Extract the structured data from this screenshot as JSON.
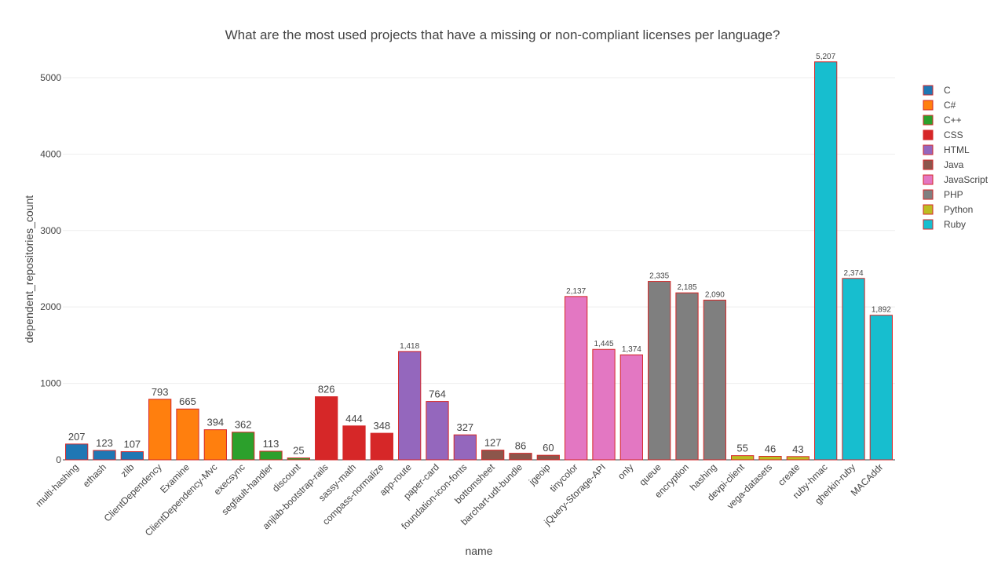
{
  "chart_data": {
    "type": "bar",
    "title": "What are the most used projects that have a missing or non-compliant licenses per language?",
    "xlabel": "name",
    "ylabel": "dependent_repositories_count",
    "ylim": [
      0,
      5400
    ],
    "yticks": [
      0,
      1000,
      2000,
      3000,
      4000,
      5000
    ],
    "grid": true,
    "legend_position": "right",
    "bar_outline_color": "#d62728",
    "categories": [
      "multi-hashing",
      "ethash",
      "zlib",
      "ClientDependency",
      "Examine",
      "ClientDependency-Mvc",
      "execsync",
      "segfault-handler",
      "discount",
      "anjlab-bootstrap-rails",
      "sassy-math",
      "compass-normalize",
      "app-route",
      "paper-card",
      "foundation-icon-fonts",
      "bottomsheet",
      "barchart-udt-bundle",
      "jgeoip",
      "tinycolor",
      "jQuery-Storage-API",
      "only",
      "queue",
      "encryption",
      "hashing",
      "devpi-client",
      "vega-datasets",
      "create",
      "ruby-hmac",
      "gherkin-ruby",
      "MACAddr"
    ],
    "series": [
      {
        "name": "C",
        "color": "#1f77b4",
        "x": [
          "multi-hashing",
          "ethash",
          "zlib"
        ],
        "values": [
          207,
          123,
          107
        ],
        "labels": [
          "207",
          "123",
          "107"
        ]
      },
      {
        "name": "C#",
        "color": "#ff7f0e",
        "x": [
          "ClientDependency",
          "Examine",
          "ClientDependency-Mvc"
        ],
        "values": [
          793,
          665,
          394
        ],
        "labels": [
          "793",
          "665",
          "394"
        ]
      },
      {
        "name": "C++",
        "color": "#2ca02c",
        "x": [
          "execsync",
          "segfault-handler",
          "discount"
        ],
        "values": [
          362,
          113,
          25
        ],
        "labels": [
          "362",
          "113",
          "25"
        ]
      },
      {
        "name": "CSS",
        "color": "#d62728",
        "x": [
          "anjlab-bootstrap-rails",
          "sassy-math",
          "compass-normalize"
        ],
        "values": [
          826,
          444,
          348
        ],
        "labels": [
          "826",
          "444",
          "348"
        ]
      },
      {
        "name": "HTML",
        "color": "#9467bd",
        "x": [
          "app-route",
          "paper-card",
          "foundation-icon-fonts"
        ],
        "values": [
          1418,
          764,
          327
        ],
        "labels": [
          "1,418",
          "764",
          "327"
        ]
      },
      {
        "name": "Java",
        "color": "#8c564b",
        "x": [
          "bottomsheet",
          "barchart-udt-bundle",
          "jgeoip"
        ],
        "values": [
          127,
          86,
          60
        ],
        "labels": [
          "127",
          "86",
          "60"
        ]
      },
      {
        "name": "JavaScript",
        "color": "#e377c2",
        "x": [
          "tinycolor",
          "jQuery-Storage-API",
          "only"
        ],
        "values": [
          2137,
          1445,
          1374
        ],
        "labels": [
          "2,137",
          "1,445",
          "1,374"
        ]
      },
      {
        "name": "PHP",
        "color": "#7f7f7f",
        "x": [
          "queue",
          "encryption",
          "hashing"
        ],
        "values": [
          2335,
          2185,
          2090
        ],
        "labels": [
          "2,335",
          "2,185",
          "2,090"
        ]
      },
      {
        "name": "Python",
        "color": "#bcbd22",
        "x": [
          "devpi-client",
          "vega-datasets",
          "create"
        ],
        "values": [
          55,
          46,
          43
        ],
        "labels": [
          "55",
          "46",
          "43"
        ]
      },
      {
        "name": "Ruby",
        "color": "#17becf",
        "x": [
          "ruby-hmac",
          "gherkin-ruby",
          "MACAddr"
        ],
        "values": [
          5207,
          2374,
          1892
        ],
        "labels": [
          "5,207",
          "2,374",
          "1,892"
        ]
      }
    ]
  }
}
